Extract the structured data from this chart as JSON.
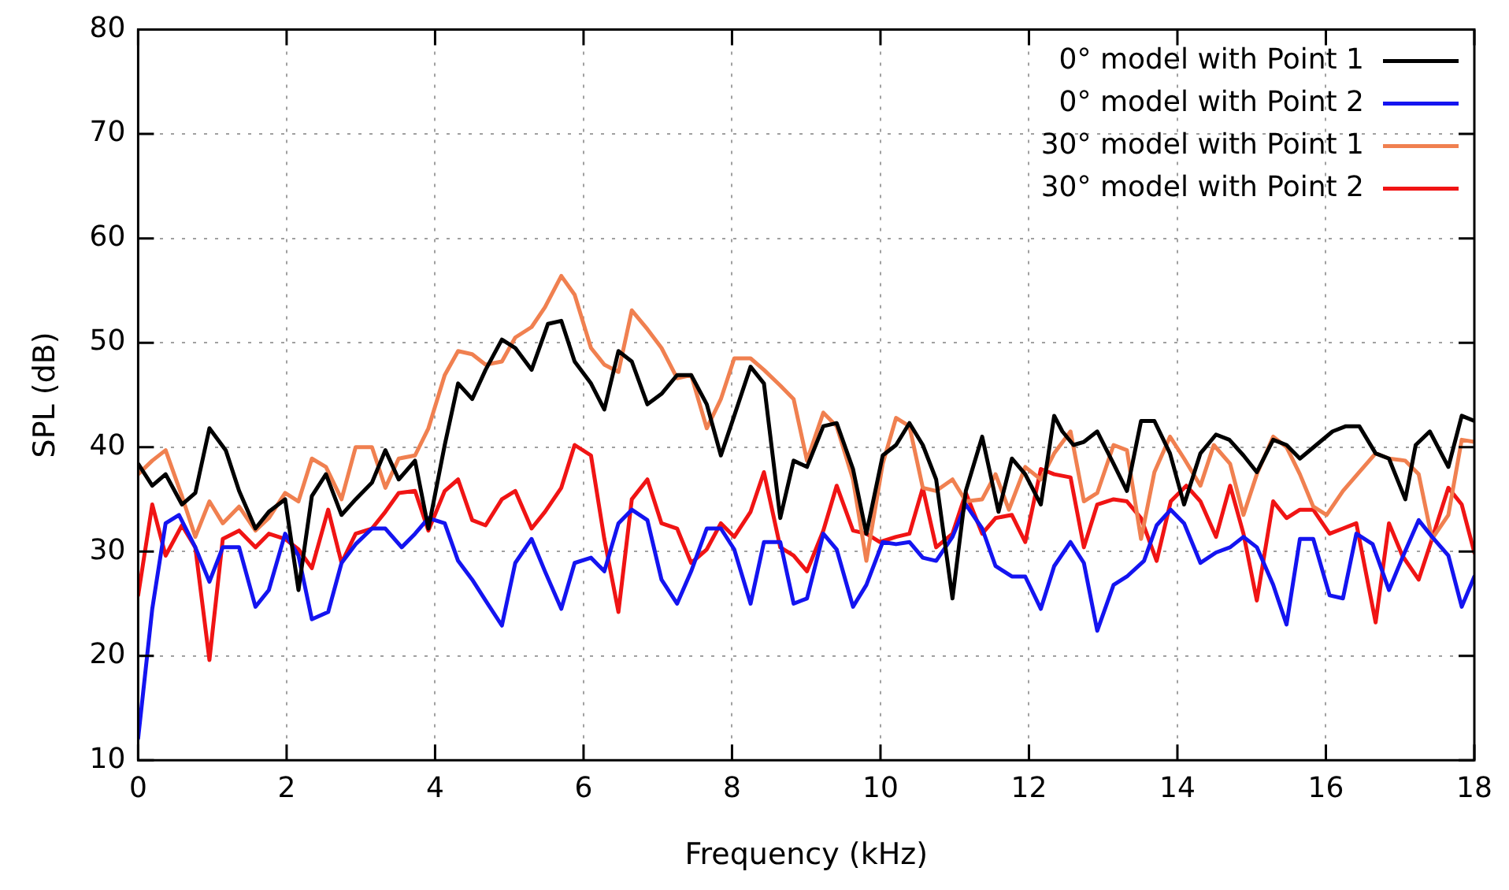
{
  "chart_data": {
    "type": "line",
    "xlabel": "Frequency (kHz)",
    "ylabel": "SPL (dB)",
    "xlim": [
      0,
      18
    ],
    "ylim": [
      10,
      80
    ],
    "xticks": [
      0,
      2,
      4,
      6,
      8,
      10,
      12,
      14,
      16,
      18
    ],
    "yticks": [
      10,
      20,
      30,
      40,
      50,
      60,
      70,
      80
    ],
    "grid": true,
    "legend": "top right",
    "series": [
      {
        "name": "0° model with Point 1",
        "color": "#000000",
        "x": [
          0,
          0.19,
          0.37,
          0.59,
          0.77,
          0.96,
          1.18,
          1.36,
          1.58,
          1.76,
          1.98,
          2.16,
          2.34,
          2.53,
          2.74,
          2.93,
          3.15,
          3.33,
          3.51,
          3.73,
          3.91,
          4.13,
          4.31,
          4.5,
          4.68,
          4.9,
          5.08,
          5.3,
          5.52,
          5.7,
          5.88,
          6.1,
          6.28,
          6.47,
          6.65,
          6.86,
          7.05,
          7.26,
          7.45,
          7.66,
          7.85,
          8.03,
          8.25,
          8.43,
          8.65,
          8.83,
          9.01,
          9.23,
          9.41,
          9.63,
          9.81,
          10.03,
          10.21,
          10.39,
          10.57,
          10.75,
          10.97,
          11.15,
          11.37,
          11.59,
          11.77,
          11.95,
          12.16,
          12.34,
          12.45,
          12.6,
          12.74,
          12.92,
          13.14,
          13.32,
          13.51,
          13.69,
          13.9,
          14.09,
          14.31,
          14.52,
          14.7,
          14.89,
          15.07,
          15.29,
          15.47,
          15.65,
          15.87,
          16.09,
          16.27,
          16.45,
          16.67,
          16.85,
          17.07,
          17.21,
          17.4,
          17.65,
          17.83,
          18
        ],
        "values": [
          38.4,
          36.3,
          37.4,
          34.5,
          35.6,
          41.8,
          39.7,
          35.8,
          32.2,
          33.8,
          35,
          26.3,
          35.3,
          37.4,
          33.5,
          35,
          36.6,
          39.7,
          36.9,
          38.7,
          32.2,
          40.2,
          46.1,
          44.6,
          47.4,
          50.3,
          49.5,
          47.4,
          51.8,
          52.1,
          48.2,
          46.1,
          43.6,
          49.2,
          48.2,
          44.1,
          45.1,
          46.9,
          46.9,
          44.1,
          39.2,
          43,
          47.7,
          46.1,
          33.2,
          38.7,
          38.1,
          42,
          42.3,
          37.9,
          31.7,
          39.2,
          40.2,
          42.3,
          40.2,
          36.9,
          25.5,
          35.8,
          41,
          33.8,
          38.9,
          37.4,
          34.5,
          43,
          41.5,
          40.2,
          40.5,
          41.5,
          38.4,
          35.8,
          42.5,
          42.5,
          39.4,
          34.5,
          39.4,
          41.2,
          40.7,
          39.2,
          37.6,
          40.7,
          40.2,
          38.9,
          40.2,
          41.5,
          42,
          42,
          39.4,
          38.9,
          35,
          40.2,
          41.5,
          38.1,
          43,
          42.5
        ]
      },
      {
        "name": "0° model with Point 2",
        "color": "#1414f0",
        "x": [
          0,
          0.19,
          0.37,
          0.55,
          0.77,
          0.96,
          1.14,
          1.36,
          1.58,
          1.76,
          1.98,
          2.16,
          2.34,
          2.56,
          2.74,
          2.93,
          3.15,
          3.33,
          3.55,
          3.73,
          3.91,
          4.13,
          4.31,
          4.5,
          4.68,
          4.9,
          5.08,
          5.3,
          5.48,
          5.7,
          5.88,
          6.1,
          6.28,
          6.47,
          6.65,
          6.86,
          7.05,
          7.26,
          7.45,
          7.66,
          7.85,
          8.03,
          8.25,
          8.43,
          8.65,
          8.83,
          9.01,
          9.23,
          9.41,
          9.63,
          9.81,
          10.03,
          10.21,
          10.39,
          10.57,
          10.75,
          10.97,
          11.15,
          11.37,
          11.55,
          11.77,
          11.95,
          12.16,
          12.34,
          12.56,
          12.74,
          12.92,
          13.14,
          13.32,
          13.55,
          13.72,
          13.91,
          14.09,
          14.31,
          14.52,
          14.71,
          14.89,
          15.07,
          15.29,
          15.47,
          15.65,
          15.83,
          16.05,
          16.23,
          16.41,
          16.63,
          16.85,
          17.03,
          17.25,
          17.43,
          17.65,
          17.83,
          18
        ],
        "values": [
          12.1,
          24.5,
          32.7,
          33.5,
          30.4,
          27.1,
          30.4,
          30.4,
          24.7,
          26.3,
          31.7,
          29.6,
          23.5,
          24.2,
          28.9,
          30.7,
          32.2,
          32.2,
          30.4,
          31.7,
          33.2,
          32.7,
          29.1,
          27.3,
          25.3,
          22.9,
          28.9,
          31.2,
          28.1,
          24.5,
          28.9,
          29.4,
          28.1,
          32.7,
          34,
          33,
          27.3,
          25,
          28.1,
          32.2,
          32.2,
          30.2,
          25,
          30.9,
          30.9,
          25,
          25.5,
          31.7,
          30.2,
          24.7,
          26.8,
          30.9,
          30.7,
          30.9,
          29.4,
          29.1,
          31.4,
          34.5,
          32.2,
          28.6,
          27.6,
          27.6,
          24.5,
          28.6,
          30.9,
          28.9,
          22.4,
          26.8,
          27.6,
          29.1,
          32.5,
          34,
          32.7,
          28.9,
          29.9,
          30.4,
          31.4,
          30.4,
          26.8,
          23,
          31.2,
          31.2,
          25.8,
          25.5,
          31.7,
          30.7,
          26.3,
          29.4,
          33,
          31.4,
          29.6,
          24.7,
          27.6
        ]
      },
      {
        "name": "30° model with Point 1",
        "color": "#f08050",
        "x": [
          0,
          0.19,
          0.37,
          0.59,
          0.77,
          0.96,
          1.14,
          1.36,
          1.58,
          1.76,
          1.98,
          2.16,
          2.34,
          2.53,
          2.74,
          2.93,
          3.15,
          3.33,
          3.51,
          3.73,
          3.91,
          4.13,
          4.31,
          4.5,
          4.68,
          4.9,
          5.08,
          5.3,
          5.48,
          5.7,
          5.88,
          6.1,
          6.28,
          6.47,
          6.65,
          6.86,
          7.05,
          7.26,
          7.45,
          7.66,
          7.85,
          8.03,
          8.25,
          8.43,
          8.65,
          8.83,
          9.01,
          9.23,
          9.41,
          9.63,
          9.81,
          10.03,
          10.21,
          10.39,
          10.57,
          10.75,
          10.97,
          11.15,
          11.37,
          11.55,
          11.73,
          11.95,
          12.16,
          12.34,
          12.56,
          12.74,
          12.92,
          13.14,
          13.32,
          13.51,
          13.69,
          13.9,
          14.09,
          14.31,
          14.49,
          14.71,
          14.89,
          15.07,
          15.29,
          15.47,
          15.65,
          15.83,
          16.01,
          16.23,
          16.45,
          16.67,
          16.85,
          17.07,
          17.25,
          17.43,
          17.65,
          17.83,
          18
        ],
        "values": [
          37.4,
          38.7,
          39.7,
          35.3,
          31.4,
          34.8,
          32.7,
          34.3,
          32,
          33.2,
          35.6,
          34.8,
          38.9,
          38.1,
          35,
          40,
          40,
          36.1,
          38.9,
          39.2,
          41.8,
          46.9,
          49.2,
          48.9,
          47.9,
          48.2,
          50.5,
          51.5,
          53.4,
          56.4,
          54.6,
          49.5,
          47.9,
          47.2,
          53.1,
          51.3,
          49.5,
          46.6,
          46.9,
          41.8,
          44.6,
          48.5,
          48.5,
          47.4,
          45.9,
          44.6,
          38.7,
          43.3,
          42,
          36.9,
          29.1,
          38.4,
          42.8,
          42,
          36.1,
          35.8,
          36.9,
          34.8,
          35,
          37.4,
          34,
          38.1,
          36.9,
          39.4,
          41.5,
          34.8,
          35.6,
          40.2,
          39.7,
          31.2,
          37.6,
          41,
          38.9,
          36.3,
          40.2,
          38.4,
          33.5,
          37.4,
          41,
          40,
          37.4,
          34.3,
          33.5,
          35.8,
          37.6,
          39.4,
          38.9,
          38.7,
          37.4,
          31.2,
          33.5,
          40.7,
          40.5
        ]
      },
      {
        "name": "30° model with Point 2",
        "color": "#f01414",
        "x": [
          0,
          0.19,
          0.37,
          0.59,
          0.77,
          0.96,
          1.14,
          1.36,
          1.58,
          1.76,
          1.98,
          2.16,
          2.34,
          2.56,
          2.74,
          2.93,
          3.15,
          3.33,
          3.51,
          3.73,
          3.91,
          4.13,
          4.31,
          4.5,
          4.68,
          4.9,
          5.08,
          5.3,
          5.48,
          5.7,
          5.88,
          6.1,
          6.28,
          6.47,
          6.65,
          6.86,
          7.05,
          7.26,
          7.45,
          7.66,
          7.85,
          8.03,
          8.25,
          8.43,
          8.65,
          8.83,
          9.01,
          9.23,
          9.41,
          9.63,
          9.81,
          9.99,
          10.21,
          10.39,
          10.57,
          10.75,
          10.97,
          11.15,
          11.37,
          11.55,
          11.77,
          11.95,
          12.16,
          12.34,
          12.56,
          12.74,
          12.92,
          13.14,
          13.32,
          13.51,
          13.72,
          13.91,
          14.12,
          14.31,
          14.52,
          14.71,
          14.89,
          15.07,
          15.29,
          15.47,
          15.65,
          15.83,
          16.05,
          16.23,
          16.41,
          16.67,
          16.85,
          17.03,
          17.25,
          17.43,
          17.65,
          17.83,
          18
        ],
        "values": [
          25.8,
          34.5,
          29.6,
          32.5,
          30.4,
          19.6,
          31.2,
          32,
          30.4,
          31.7,
          31.2,
          30.2,
          28.4,
          34,
          28.9,
          31.7,
          32.2,
          33.8,
          35.6,
          35.8,
          32,
          35.8,
          36.9,
          33,
          32.5,
          35,
          35.8,
          32.2,
          33.8,
          36.1,
          40.2,
          39.2,
          31.2,
          24.2,
          35,
          36.9,
          32.7,
          32.2,
          28.9,
          30.2,
          32.7,
          31.4,
          33.8,
          37.6,
          30.4,
          29.6,
          28.1,
          32,
          36.3,
          32,
          31.7,
          30.9,
          31.4,
          31.7,
          36.1,
          30.4,
          31.7,
          35.6,
          31.7,
          33.2,
          33.5,
          30.9,
          37.9,
          37.4,
          37.1,
          30.4,
          34.5,
          35,
          34.8,
          33.2,
          29.1,
          34.8,
          36.3,
          34.8,
          31.4,
          36.3,
          31.7,
          25.3,
          34.8,
          33.2,
          34,
          34,
          31.7,
          32.2,
          32.7,
          23.2,
          32.7,
          29.6,
          27.3,
          31.2,
          36.1,
          34.5,
          29.9
        ]
      }
    ]
  }
}
